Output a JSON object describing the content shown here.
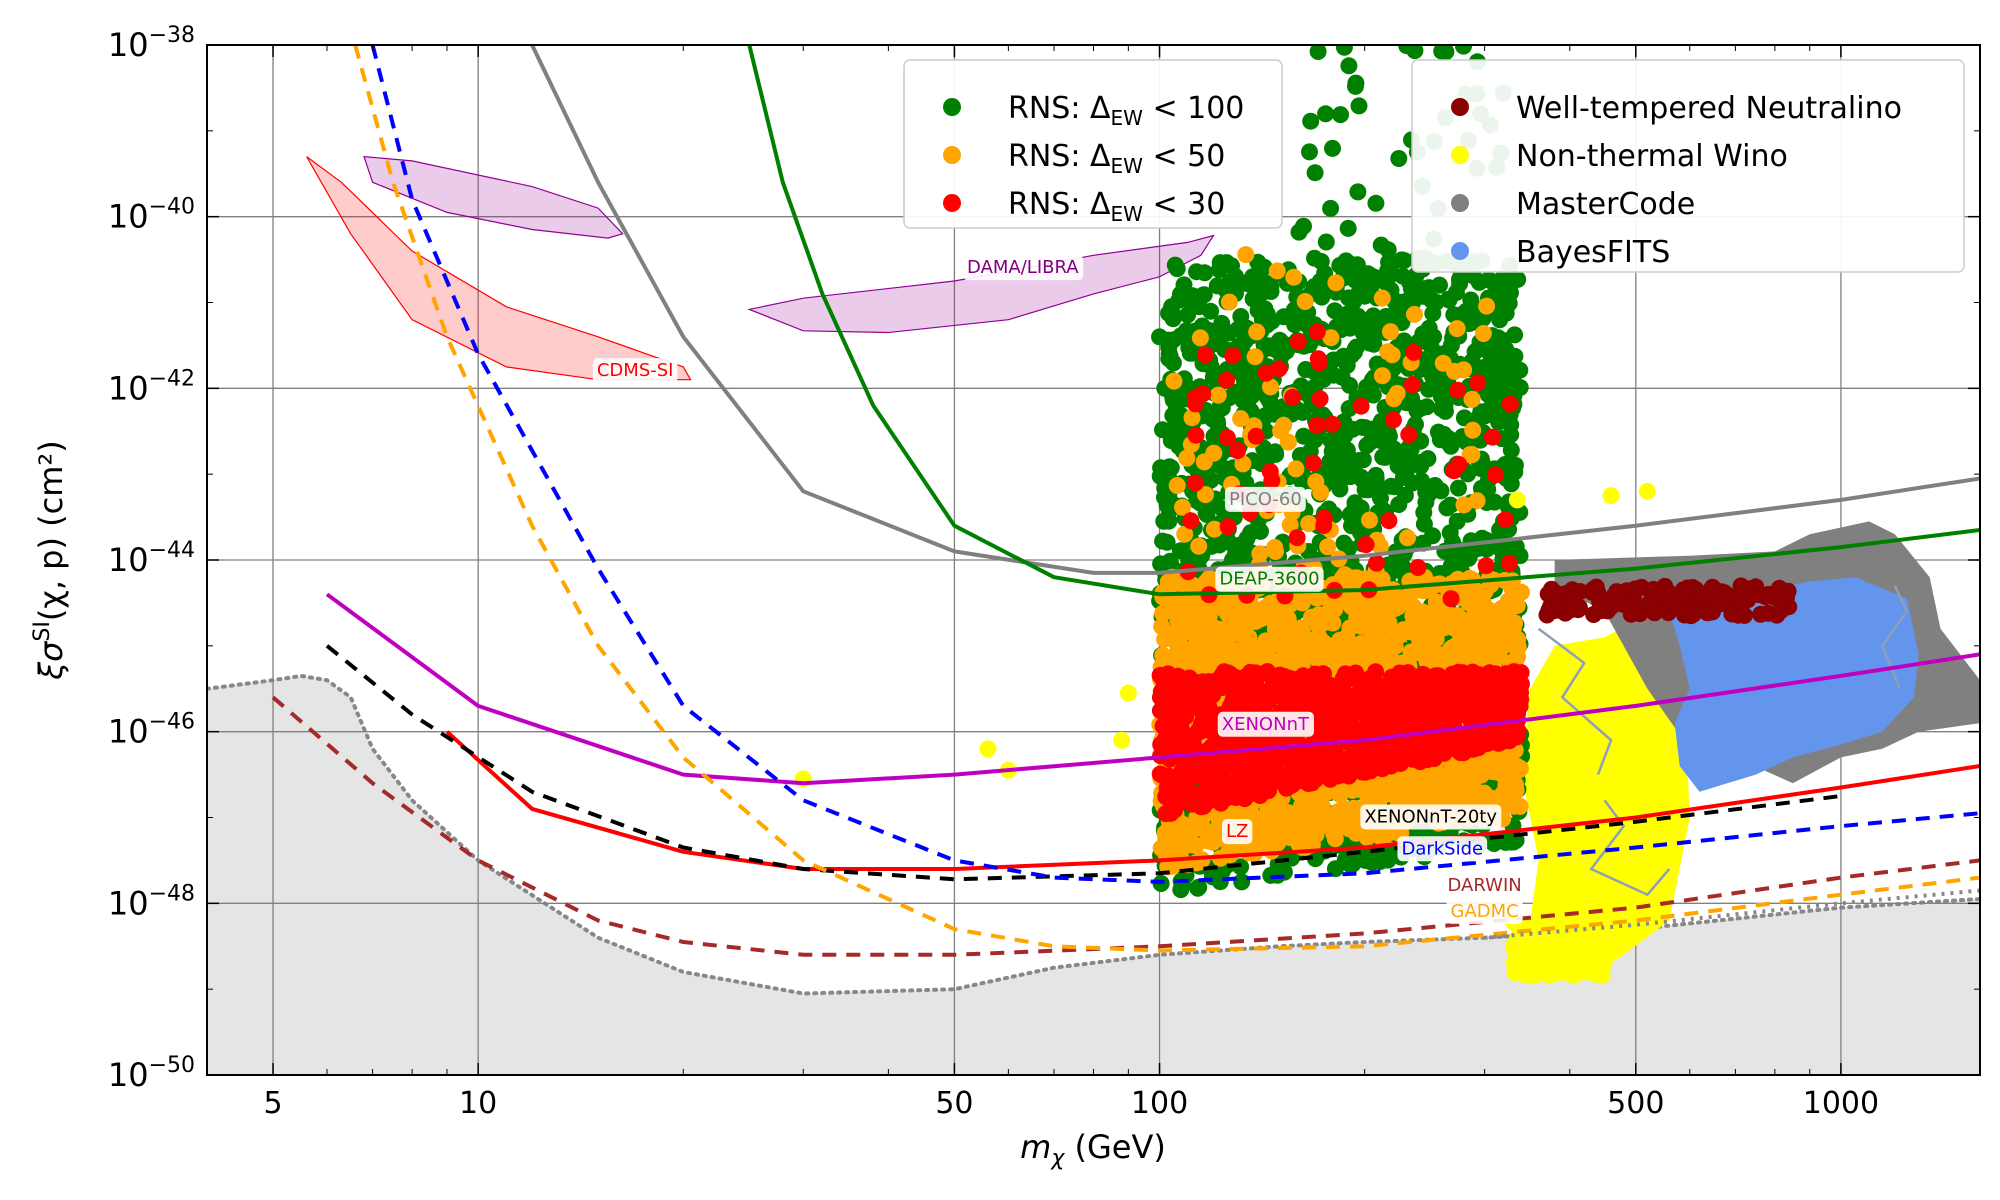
{
  "chart_data": {
    "type": "scatter",
    "title": "",
    "xlabel_sym": "m",
    "xlabel_sub": "χ",
    "xlabel_unit": " (GeV)",
    "ylabel_a": "ξσ",
    "ylabel_sup": "SI",
    "ylabel_b": "(χ, p) (cm²)",
    "xscale": "log",
    "yscale": "log",
    "xlim": [
      4,
      1600
    ],
    "ylim": [
      1e-50,
      1e-38
    ],
    "x_ticks": [
      {
        "v": 5,
        "label": "5"
      },
      {
        "v": 10,
        "label": "10"
      },
      {
        "v": 50,
        "label": "50"
      },
      {
        "v": 100,
        "label": "100"
      },
      {
        "v": 500,
        "label": "500"
      },
      {
        "v": 1000,
        "label": "1000"
      }
    ],
    "y_ticks": [
      {
        "exp": -50,
        "base": "10",
        "sup": "−50"
      },
      {
        "exp": -48,
        "base": "10",
        "sup": "−48"
      },
      {
        "exp": -46,
        "base": "10",
        "sup": "−46"
      },
      {
        "exp": -44,
        "base": "10",
        "sup": "−44"
      },
      {
        "exp": -42,
        "base": "10",
        "sup": "−42"
      },
      {
        "exp": -40,
        "base": "10",
        "sup": "−40"
      },
      {
        "exp": -38,
        "base": "10",
        "sup": "−38"
      }
    ],
    "grid": true,
    "legend_left": {
      "placement": "top-center",
      "entries": [
        {
          "color": "#008000",
          "prefix": "RNS: Δ",
          "sub": "EW",
          "suffix": " < 100"
        },
        {
          "color": "#ffa500",
          "prefix": "RNS: Δ",
          "sub": "EW",
          "suffix": " < 50"
        },
        {
          "color": "#ff0000",
          "prefix": "RNS: Δ",
          "sub": "EW",
          "suffix": " < 30"
        }
      ]
    },
    "legend_right": {
      "placement": "top-right",
      "entries": [
        {
          "color": "#8b0000",
          "label": "Well-tempered Neutralino"
        },
        {
          "color": "#ffff00",
          "label": "Non-thermal Wino"
        },
        {
          "color": "#808080",
          "label": "MasterCode"
        },
        {
          "color": "#6495ed",
          "label": "BayesFITS"
        }
      ]
    },
    "floor": {
      "name": "neutrino-fog",
      "fill": "#e5e5e5",
      "color": "#888888",
      "points": [
        [
          4,
          -45.5
        ],
        [
          5,
          -45.4
        ],
        [
          5.5,
          -45.35
        ],
        [
          6,
          -45.4
        ],
        [
          6.5,
          -45.6
        ],
        [
          7,
          -46.2
        ],
        [
          8,
          -46.8
        ],
        [
          10,
          -47.5
        ],
        [
          15,
          -48.4
        ],
        [
          20,
          -48.8
        ],
        [
          30,
          -49.05
        ],
        [
          50,
          -49.0
        ],
        [
          70,
          -48.75
        ],
        [
          100,
          -48.6
        ],
        [
          150,
          -48.5
        ],
        [
          200,
          -48.45
        ],
        [
          300,
          -48.4
        ],
        [
          500,
          -48.3
        ],
        [
          1000,
          -48.05
        ],
        [
          1600,
          -47.95
        ]
      ]
    },
    "limits": [
      {
        "name": "pico-60",
        "color": "#808080",
        "dash": "",
        "label": "PICO-60",
        "label_at": [
          143,
          -43.3
        ],
        "points": [
          [
            12,
            -38
          ],
          [
            15,
            -39.6
          ],
          [
            20,
            -41.4
          ],
          [
            30,
            -43.2
          ],
          [
            50,
            -43.9
          ],
          [
            80,
            -44.15
          ],
          [
            100,
            -44.15
          ],
          [
            200,
            -43.95
          ],
          [
            500,
            -43.6
          ],
          [
            1000,
            -43.3
          ],
          [
            1600,
            -43.05
          ]
        ]
      },
      {
        "name": "deap-3600",
        "color": "#008000",
        "dash": "",
        "label": "DEAP-3600",
        "label_at": [
          145,
          -44.23
        ],
        "points": [
          [
            25,
            -38
          ],
          [
            28,
            -39.6
          ],
          [
            32,
            -40.9
          ],
          [
            38,
            -42.2
          ],
          [
            50,
            -43.6
          ],
          [
            70,
            -44.2
          ],
          [
            100,
            -44.4
          ],
          [
            200,
            -44.35
          ],
          [
            500,
            -44.1
          ],
          [
            1000,
            -43.85
          ],
          [
            1600,
            -43.65
          ]
        ]
      },
      {
        "name": "xenonnt",
        "color": "#c000c0",
        "dash": "",
        "label": "XENONnT",
        "label_at": [
          143,
          -45.92
        ],
        "points": [
          [
            6,
            -44.4
          ],
          [
            10,
            -45.7
          ],
          [
            20,
            -46.5
          ],
          [
            30,
            -46.6
          ],
          [
            50,
            -46.5
          ],
          [
            100,
            -46.3
          ],
          [
            200,
            -46.1
          ],
          [
            500,
            -45.7
          ],
          [
            1000,
            -45.35
          ],
          [
            1600,
            -45.1
          ]
        ]
      },
      {
        "name": "lz",
        "color": "#ff0000",
        "dash": "",
        "label": "LZ",
        "label_at": [
          130,
          -47.17
        ],
        "points": [
          [
            9,
            -46.0
          ],
          [
            12,
            -46.9
          ],
          [
            20,
            -47.4
          ],
          [
            30,
            -47.6
          ],
          [
            50,
            -47.6
          ],
          [
            100,
            -47.5
          ],
          [
            200,
            -47.35
          ],
          [
            500,
            -47.0
          ],
          [
            1000,
            -46.65
          ],
          [
            1600,
            -46.4
          ]
        ]
      },
      {
        "name": "xenonnt-20ty",
        "color": "#000000",
        "dash": "14 10",
        "label": "XENONnT-20ty",
        "label_at": [
          250,
          -47.0
        ],
        "points": [
          [
            6,
            -45.0
          ],
          [
            8,
            -45.8
          ],
          [
            12,
            -46.7
          ],
          [
            20,
            -47.35
          ],
          [
            30,
            -47.6
          ],
          [
            50,
            -47.72
          ],
          [
            100,
            -47.65
          ],
          [
            200,
            -47.4
          ],
          [
            500,
            -47.05
          ],
          [
            1000,
            -46.75
          ]
        ]
      },
      {
        "name": "darkside",
        "color": "#0000ff",
        "dash": "14 10",
        "label": "DarkSide",
        "label_at": [
          260,
          -47.37
        ],
        "points": [
          [
            7,
            -38
          ],
          [
            8,
            -39.8
          ],
          [
            10,
            -41.6
          ],
          [
            15,
            -44.1
          ],
          [
            20,
            -45.7
          ],
          [
            30,
            -46.8
          ],
          [
            50,
            -47.5
          ],
          [
            70,
            -47.7
          ],
          [
            100,
            -47.75
          ],
          [
            200,
            -47.65
          ],
          [
            500,
            -47.35
          ],
          [
            1000,
            -47.1
          ],
          [
            1600,
            -46.95
          ]
        ]
      },
      {
        "name": "darwin",
        "color": "#a52a2a",
        "dash": "14 10",
        "label": "DARWIN",
        "label_at": [
          300,
          -47.8
        ],
        "points": [
          [
            5,
            -45.6
          ],
          [
            7,
            -46.6
          ],
          [
            10,
            -47.5
          ],
          [
            15,
            -48.2
          ],
          [
            20,
            -48.45
          ],
          [
            30,
            -48.6
          ],
          [
            50,
            -48.6
          ],
          [
            100,
            -48.5
          ],
          [
            200,
            -48.35
          ],
          [
            500,
            -48.05
          ],
          [
            1000,
            -47.7
          ],
          [
            1600,
            -47.5
          ]
        ]
      },
      {
        "name": "gadmc",
        "color": "#ffa500",
        "dash": "14 10",
        "label": "GADMC",
        "label_at": [
          300,
          -48.1
        ],
        "points": [
          [
            6.6,
            -38
          ],
          [
            7.5,
            -39.6
          ],
          [
            9,
            -41.4
          ],
          [
            12,
            -43.6
          ],
          [
            15,
            -45.0
          ],
          [
            20,
            -46.3
          ],
          [
            30,
            -47.5
          ],
          [
            50,
            -48.3
          ],
          [
            70,
            -48.5
          ],
          [
            100,
            -48.55
          ],
          [
            200,
            -48.5
          ],
          [
            500,
            -48.2
          ],
          [
            1000,
            -47.9
          ],
          [
            1600,
            -47.7
          ]
        ]
      },
      {
        "name": "dotted-grey",
        "color": "#888888",
        "dash": "3 6",
        "label": "",
        "label_at": [
          0,
          0
        ],
        "points": [
          [
            300,
            -48.4
          ],
          [
            500,
            -48.25
          ],
          [
            1000,
            -48.0
          ],
          [
            1600,
            -47.85
          ]
        ]
      }
    ],
    "regions": [
      {
        "name": "dama-libra",
        "label": "DAMA/LIBRA",
        "fill": "rgba(148,0,148,0.2)",
        "stroke": "#940094",
        "label_at": [
          63,
          -40.6
        ],
        "label_color": "#800080",
        "points": [
          [
            25,
            -41.08
          ],
          [
            30,
            -40.95
          ],
          [
            50,
            -40.75
          ],
          [
            80,
            -40.45
          ],
          [
            110,
            -40.3
          ],
          [
            120,
            -40.22
          ],
          [
            115,
            -40.45
          ],
          [
            100,
            -40.7
          ],
          [
            80,
            -40.9
          ],
          [
            60,
            -41.2
          ],
          [
            40,
            -41.35
          ],
          [
            30,
            -41.33
          ],
          [
            25,
            -41.08
          ]
        ]
      },
      {
        "name": "dama-libra-low",
        "label": "",
        "fill": "rgba(148,0,148,0.2)",
        "stroke": "#940094",
        "label_at": [
          0,
          0
        ],
        "label_color": "#800080",
        "points": [
          [
            6.8,
            -39.3
          ],
          [
            8,
            -39.35
          ],
          [
            12,
            -39.65
          ],
          [
            15,
            -39.9
          ],
          [
            16.3,
            -40.2
          ],
          [
            15.5,
            -40.25
          ],
          [
            12,
            -40.15
          ],
          [
            9,
            -39.95
          ],
          [
            7,
            -39.6
          ],
          [
            6.8,
            -39.3
          ]
        ]
      },
      {
        "name": "cdms-si",
        "label": "CDMS-SI",
        "fill": "rgba(255,0,0,0.2)",
        "stroke": "#ff0000",
        "label_at": [
          17,
          -41.8
        ],
        "label_color": "#ff0000",
        "points": [
          [
            5.6,
            -39.3
          ],
          [
            6.3,
            -39.6
          ],
          [
            8,
            -40.4
          ],
          [
            11,
            -41.05
          ],
          [
            15,
            -41.4
          ],
          [
            20,
            -41.75
          ],
          [
            20.5,
            -41.9
          ],
          [
            15,
            -41.9
          ],
          [
            11,
            -41.75
          ],
          [
            8,
            -41.2
          ],
          [
            6.5,
            -40.2
          ],
          [
            5.6,
            -39.3
          ]
        ]
      }
    ],
    "models": [
      {
        "name": "non-thermal-wino",
        "color": "#ffff00",
        "points": [
          [
            340,
            -48.9
          ],
          [
            360,
            -47.5
          ],
          [
            340,
            -46.5
          ],
          [
            350,
            -45.5
          ],
          [
            380,
            -45.0
          ],
          [
            450,
            -44.9
          ],
          [
            530,
            -44.6
          ],
          [
            600,
            -44.9
          ],
          [
            590,
            -45.8
          ],
          [
            600,
            -47.0
          ],
          [
            560,
            -48.2
          ],
          [
            480,
            -48.6
          ],
          [
            420,
            -48.9
          ],
          [
            340,
            -48.9
          ]
        ]
      },
      {
        "name": "mastercode",
        "color": "#808080",
        "points": [
          [
            380,
            -44.0
          ],
          [
            600,
            -43.95
          ],
          [
            800,
            -43.9
          ],
          [
            900,
            -43.7
          ],
          [
            1100,
            -43.55
          ],
          [
            1200,
            -43.7
          ],
          [
            1350,
            -44.2
          ],
          [
            1400,
            -44.8
          ],
          [
            1600,
            -45.4
          ],
          [
            1600,
            -45.9
          ],
          [
            1300,
            -46.0
          ],
          [
            1150,
            -46.2
          ],
          [
            1000,
            -46.3
          ],
          [
            850,
            -46.6
          ],
          [
            700,
            -46.3
          ],
          [
            600,
            -46.2
          ],
          [
            520,
            -45.5
          ],
          [
            450,
            -44.6
          ],
          [
            380,
            -44.3
          ],
          [
            380,
            -44.0
          ]
        ]
      },
      {
        "name": "bayesfits",
        "color": "#6495ed",
        "points": [
          [
            560,
            -44.6
          ],
          [
            700,
            -44.4
          ],
          [
            900,
            -44.25
          ],
          [
            1050,
            -44.2
          ],
          [
            1250,
            -44.45
          ],
          [
            1300,
            -45.1
          ],
          [
            1280,
            -45.6
          ],
          [
            1150,
            -46.0
          ],
          [
            1000,
            -46.15
          ],
          [
            850,
            -46.3
          ],
          [
            750,
            -46.5
          ],
          [
            620,
            -46.7
          ],
          [
            580,
            -46.4
          ],
          [
            570,
            -45.9
          ],
          [
            600,
            -45.5
          ],
          [
            580,
            -45.0
          ],
          [
            560,
            -44.6
          ]
        ]
      }
    ],
    "scatter": {
      "dots": [
        {
          "color": "#008000",
          "count": 1700,
          "xmin": 100,
          "xmax": 340,
          "ylo": -47.9,
          "yhi": -40.5,
          "ylo_slope": 0.6
        },
        {
          "color": "#008000",
          "count": 55,
          "xmin": 160,
          "xmax": 320,
          "ylo": -41.0,
          "yhi": -38.0,
          "ylo_slope": 0
        },
        {
          "color": "#ffa500",
          "count": 1500,
          "xmin": 100,
          "xmax": 340,
          "ylo": -47.6,
          "yhi": -44.2,
          "ylo_slope": 0.6
        },
        {
          "color": "#ffa500",
          "count": 80,
          "xmin": 105,
          "xmax": 320,
          "ylo": -44.2,
          "yhi": -40.4,
          "ylo_slope": 0
        },
        {
          "color": "#ff0000",
          "count": 900,
          "xmin": 100,
          "xmax": 340,
          "ylo": -47.0,
          "yhi": -45.3,
          "ylo_slope": 0.9
        },
        {
          "color": "#ff0000",
          "count": 60,
          "xmin": 110,
          "xmax": 330,
          "ylo": -44.5,
          "yhi": -41.3,
          "ylo_slope": 0
        },
        {
          "color": "#ffff00",
          "count": 160,
          "xmin": 330,
          "xmax": 450,
          "ylo": -48.85,
          "yhi": -48.2,
          "ylo_slope": 0
        },
        {
          "color": "#8b0000",
          "count": 140,
          "xmin": 370,
          "xmax": 840,
          "ylo": -44.65,
          "yhi": -44.3,
          "ylo_slope": 0
        }
      ],
      "points": [
        {
          "color": "#ffff00",
          "x": 30,
          "y": -46.55
        },
        {
          "color": "#ffff00",
          "x": 56,
          "y": -46.2
        },
        {
          "color": "#ffff00",
          "x": 60,
          "y": -46.45
        },
        {
          "color": "#ffff00",
          "x": 88,
          "y": -46.1
        },
        {
          "color": "#ffff00",
          "x": 90,
          "y": -45.55
        },
        {
          "color": "#ffff00",
          "x": 335,
          "y": -43.3
        },
        {
          "color": "#ffff00",
          "x": 460,
          "y": -43.25
        },
        {
          "color": "#ffff00",
          "x": 520,
          "y": -43.2
        },
        {
          "color": "#008000",
          "x": 100,
          "y": -41.4
        }
      ]
    }
  }
}
